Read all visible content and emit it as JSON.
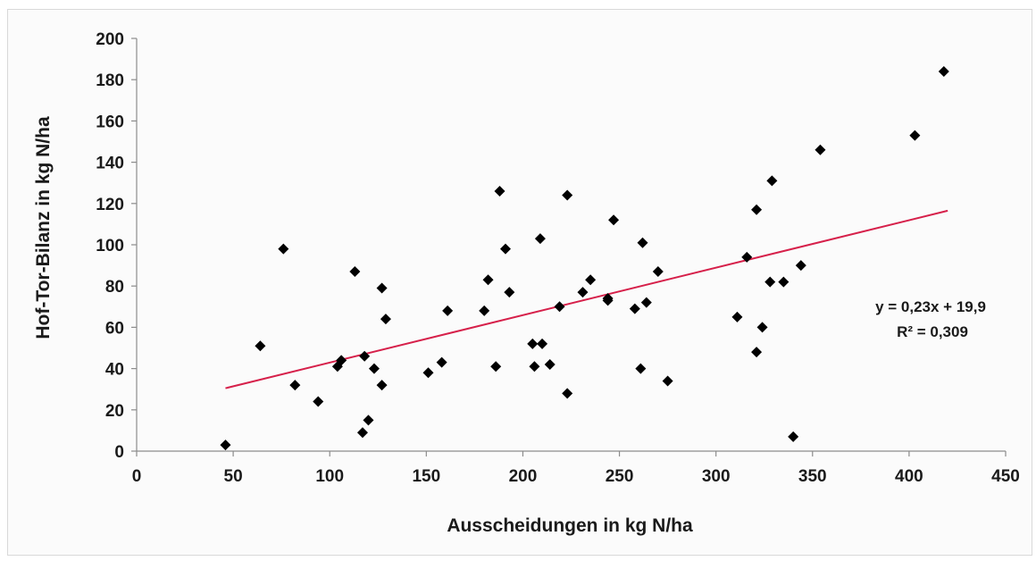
{
  "chart_data": {
    "type": "scatter",
    "title": "",
    "xlabel": "Ausscheidungen in kg N/ha",
    "ylabel": "Hof-Tor-Bilanz in kg N/ha",
    "xlim": [
      0,
      450
    ],
    "ylim": [
      0,
      200
    ],
    "xticks": [
      0,
      50,
      100,
      150,
      200,
      250,
      300,
      350,
      400,
      450
    ],
    "yticks": [
      0,
      20,
      40,
      60,
      80,
      100,
      120,
      140,
      160,
      180,
      200
    ],
    "grid": false,
    "marker_color": "#000000",
    "trendline_color": "#d6204a",
    "trendline": {
      "slope": 0.23,
      "intercept": 19.9,
      "x_range": [
        46,
        420
      ]
    },
    "equation": "y = 0,23x + 19,9",
    "r2": "R² = 0,309",
    "points": [
      [
        46,
        3
      ],
      [
        64,
        51
      ],
      [
        76,
        98
      ],
      [
        82,
        32
      ],
      [
        94,
        24
      ],
      [
        104,
        41
      ],
      [
        106,
        44
      ],
      [
        113,
        87
      ],
      [
        117,
        9
      ],
      [
        118,
        46
      ],
      [
        120,
        15
      ],
      [
        123,
        40
      ],
      [
        127,
        79
      ],
      [
        127,
        32
      ],
      [
        129,
        64
      ],
      [
        151,
        38
      ],
      [
        158,
        43
      ],
      [
        161,
        68
      ],
      [
        180,
        68
      ],
      [
        182,
        83
      ],
      [
        186,
        41
      ],
      [
        188,
        126
      ],
      [
        191,
        98
      ],
      [
        193,
        77
      ],
      [
        205,
        52
      ],
      [
        206,
        41
      ],
      [
        209,
        103
      ],
      [
        210,
        52
      ],
      [
        214,
        42
      ],
      [
        219,
        70
      ],
      [
        223,
        124
      ],
      [
        223,
        28
      ],
      [
        231,
        77
      ],
      [
        235,
        83
      ],
      [
        244,
        74
      ],
      [
        244,
        73
      ],
      [
        247,
        112
      ],
      [
        258,
        69
      ],
      [
        261,
        40
      ],
      [
        262,
        101
      ],
      [
        264,
        72
      ],
      [
        270,
        87
      ],
      [
        275,
        34
      ],
      [
        311,
        65
      ],
      [
        316,
        94
      ],
      [
        321,
        117
      ],
      [
        321,
        48
      ],
      [
        324,
        60
      ],
      [
        328,
        82
      ],
      [
        329,
        131
      ],
      [
        335,
        82
      ],
      [
        340,
        7
      ],
      [
        344,
        90
      ],
      [
        354,
        146
      ],
      [
        403,
        153
      ],
      [
        418,
        184
      ]
    ]
  }
}
